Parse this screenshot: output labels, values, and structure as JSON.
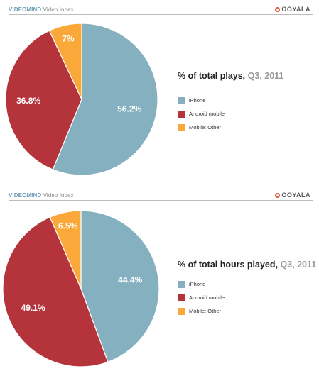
{
  "panels": [
    {
      "header": {
        "brand": "VIDEOMIND",
        "sub": " Video Index"
      },
      "logo": "OOYALA",
      "title_main": "% of total plays, ",
      "title_period": "Q3, 2011"
    },
    {
      "header": {
        "brand": "VIDEOMIND",
        "sub": " Video Index"
      },
      "logo": "OOYALA",
      "title_main": "% of total hours played, ",
      "title_period": "Q3, 2011"
    }
  ],
  "colors": {
    "iphone": "#84b0bf",
    "android": "#b5333a",
    "other": "#fba83b"
  },
  "chart_data": [
    {
      "type": "pie",
      "title": "% of total plays, Q3, 2011",
      "categories": [
        "iPhone",
        "Android mobile",
        "Mobile: Other"
      ],
      "values": [
        56.2,
        36.8,
        7
      ],
      "labels": [
        "56.2%",
        "36.8%",
        "7%"
      ],
      "legend": "right"
    },
    {
      "type": "pie",
      "title": "% of total hours played, Q3, 2011",
      "categories": [
        "iPhone",
        "Android mobile",
        "Mobile: Other"
      ],
      "values": [
        44.4,
        49.1,
        6.5
      ],
      "labels": [
        "44.4%",
        "49.1%",
        "6.5%"
      ],
      "legend": "right"
    }
  ]
}
